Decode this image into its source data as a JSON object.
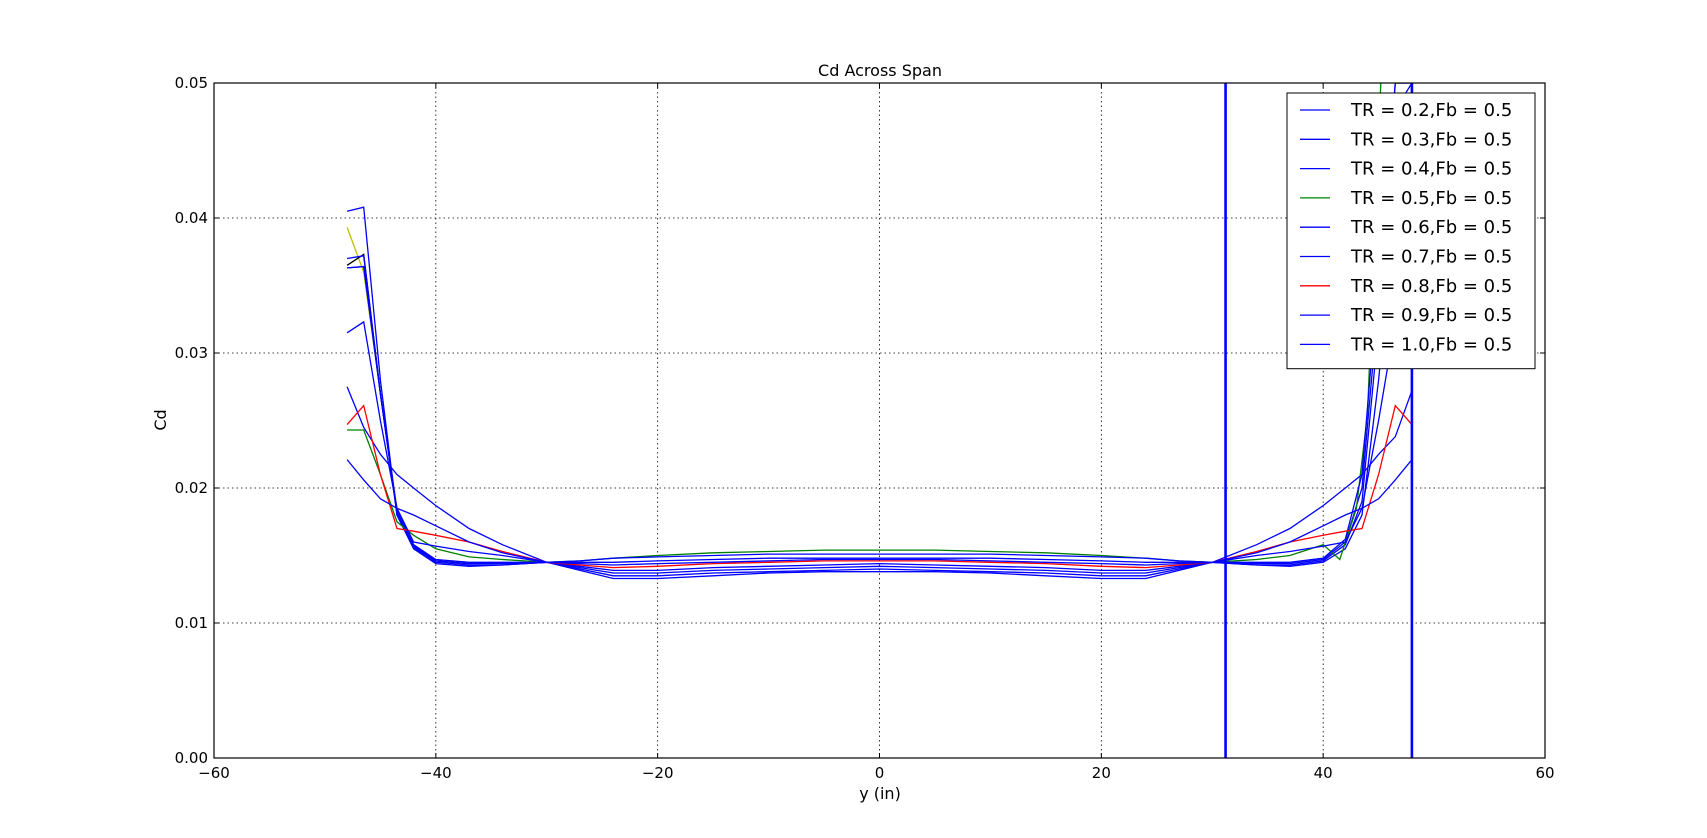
{
  "chart_data": {
    "type": "line",
    "title": "Cd Across Span",
    "xlabel": "y (in)",
    "ylabel": "Cd",
    "xlim": [
      -60,
      60
    ],
    "ylim": [
      0,
      0.05
    ],
    "xticks": [
      -60,
      -40,
      -20,
      0,
      20,
      40,
      60
    ],
    "xtick_labels": [
      "−60",
      "−40",
      "−20",
      "0",
      "20",
      "40",
      "60"
    ],
    "yticks": [
      0.0,
      0.01,
      0.02,
      0.03,
      0.04,
      0.05
    ],
    "ytick_labels": [
      "0.00",
      "0.01",
      "0.02",
      "0.03",
      "0.04",
      "0.05"
    ],
    "grid": true,
    "legend_position": "top-right",
    "vertical_lines": [
      {
        "x": 31.2,
        "color": "#0000ff"
      },
      {
        "x": 48.0,
        "color": "#0000ff"
      }
    ],
    "series": [
      {
        "name": "TR = 0.2,Fb = 0.5",
        "color": "#0000ff",
        "x": [
          -48,
          -46.5,
          -45,
          -43.5,
          -42,
          -40,
          -37,
          -34,
          -30,
          -27,
          -24,
          -20,
          -15,
          -10,
          -5,
          0,
          5,
          10,
          15,
          20,
          24,
          27,
          30,
          34,
          37,
          40,
          42,
          43.5,
          45,
          46.5,
          48
        ],
        "y": [
          0.0405,
          0.0408,
          0.028,
          0.018,
          0.0155,
          0.0144,
          0.0142,
          0.0143,
          0.0145,
          0.0139,
          0.0133,
          0.0133,
          0.0135,
          0.0137,
          0.0138,
          0.0138,
          0.0138,
          0.0137,
          0.0135,
          0.0133,
          0.0133,
          0.0139,
          0.0145,
          0.0143,
          0.0142,
          0.0145,
          0.0155,
          0.018,
          0.028,
          0.0408,
          0.0405
        ]
      },
      {
        "name": "TR = 0.3,Fb = 0.5",
        "color": "#0000ff",
        "x": [
          -48,
          -46.5,
          -45,
          -43.5,
          -42,
          -40,
          -37,
          -34,
          -30,
          -27,
          -24,
          -20,
          -15,
          -10,
          -5,
          0,
          5,
          10,
          15,
          20,
          24,
          27,
          30,
          34,
          37,
          40,
          42,
          43.5,
          45,
          46.5,
          48
        ],
        "y": [
          0.037,
          0.0372,
          0.027,
          0.018,
          0.0156,
          0.0145,
          0.0143,
          0.0143,
          0.0145,
          0.014,
          0.0135,
          0.0135,
          0.0137,
          0.0138,
          0.0139,
          0.014,
          0.0139,
          0.0138,
          0.0137,
          0.0135,
          0.0135,
          0.014,
          0.0145,
          0.0143,
          0.0143,
          0.0146,
          0.0158,
          0.019,
          0.032,
          0.048,
          0.05
        ]
      },
      {
        "name": "TR = 0.4,Fb = 0.5",
        "color": "#0000ff",
        "x": [
          -48,
          -46.5,
          -45,
          -43.5,
          -42,
          -40,
          -37,
          -34,
          -30,
          -27,
          -24,
          -20,
          -15,
          -10,
          -5,
          0,
          5,
          10,
          15,
          20,
          24,
          27,
          30,
          34,
          37,
          40,
          42,
          43.5,
          45,
          46.5,
          48
        ],
        "y": [
          0.0363,
          0.0364,
          0.027,
          0.0182,
          0.0157,
          0.0146,
          0.0144,
          0.0144,
          0.0145,
          0.0141,
          0.0137,
          0.0137,
          0.0139,
          0.014,
          0.0141,
          0.0142,
          0.0141,
          0.014,
          0.0139,
          0.0137,
          0.0137,
          0.0141,
          0.0145,
          0.0144,
          0.0144,
          0.0147,
          0.016,
          0.02,
          0.034,
          0.05,
          0.05
        ]
      },
      {
        "name": "TR = 0.5,Fb = 0.5",
        "color": "#008000",
        "x": [
          -48,
          -46.5,
          -45,
          -43.5,
          -42,
          -40,
          -37,
          -34,
          -30,
          -27,
          -24,
          -20,
          -15,
          -10,
          -5,
          0,
          5,
          10,
          15,
          20,
          24,
          27,
          30,
          34,
          37,
          40,
          41.5,
          43,
          44,
          45.2,
          46
        ],
        "y": [
          0.0243,
          0.0243,
          0.021,
          0.0175,
          0.0165,
          0.0155,
          0.0149,
          0.0147,
          0.0145,
          0.0146,
          0.0148,
          0.015,
          0.0152,
          0.0153,
          0.0154,
          0.0154,
          0.0154,
          0.0153,
          0.0152,
          0.015,
          0.0148,
          0.0146,
          0.0145,
          0.0147,
          0.015,
          0.0158,
          0.0147,
          0.0185,
          0.0255,
          0.05,
          0.0505
        ]
      },
      {
        "name": "TR = 0.6,Fb = 0.5",
        "color": "#0000ff",
        "x": [
          -48,
          -46.5,
          -45,
          -43.5,
          -42,
          -40,
          -37,
          -34,
          -30,
          -27,
          -24,
          -20,
          -15,
          -10,
          -5,
          0,
          5,
          10,
          15,
          20,
          24,
          27,
          30,
          34,
          37,
          40,
          42,
          43.5,
          45,
          46.5,
          48
        ],
        "y": [
          0.0275,
          0.0245,
          0.0225,
          0.021,
          0.02,
          0.0187,
          0.017,
          0.0158,
          0.0145,
          0.0146,
          0.0148,
          0.0149,
          0.015,
          0.0151,
          0.0151,
          0.0151,
          0.0151,
          0.0151,
          0.015,
          0.0149,
          0.0148,
          0.0146,
          0.0145,
          0.0158,
          0.017,
          0.0187,
          0.02,
          0.021,
          0.0225,
          0.0238,
          0.0272
        ]
      },
      {
        "name": "TR = 0.7,Fb = 0.5",
        "color": "#0000ff",
        "x": [
          -48,
          -46.5,
          -45,
          -43.5,
          -42,
          -40,
          -37,
          -34,
          -30,
          -27,
          -24,
          -20,
          -15,
          -10,
          -5,
          0,
          5,
          10,
          15,
          20,
          24,
          27,
          30,
          34,
          37,
          40,
          42,
          43.5,
          45,
          46.5,
          48
        ],
        "y": [
          0.0363,
          0.0364,
          0.027,
          0.0183,
          0.0158,
          0.0147,
          0.0145,
          0.0145,
          0.0145,
          0.0142,
          0.0139,
          0.0139,
          0.0141,
          0.0142,
          0.0143,
          0.0144,
          0.0143,
          0.0142,
          0.0141,
          0.0139,
          0.0139,
          0.0142,
          0.0145,
          0.0145,
          0.0145,
          0.0148,
          0.0162,
          0.021,
          0.036,
          0.05,
          0.05
        ]
      },
      {
        "name": "TR = 0.8,Fb = 0.5",
        "color": "#ff0000",
        "x": [
          -48,
          -46.5,
          -45,
          -43.5,
          -42,
          -40,
          -37,
          -34,
          -30,
          -27,
          -24,
          -20,
          -15,
          -10,
          -5,
          0,
          5,
          10,
          15,
          20,
          24,
          27,
          30,
          34,
          37,
          40,
          42,
          43.5,
          45,
          46.5,
          48
        ],
        "y": [
          0.0247,
          0.0261,
          0.021,
          0.017,
          0.0168,
          0.0165,
          0.016,
          0.0153,
          0.0145,
          0.0143,
          0.0141,
          0.0142,
          0.0144,
          0.0145,
          0.0146,
          0.0146,
          0.0146,
          0.0145,
          0.0144,
          0.0142,
          0.0141,
          0.0143,
          0.0145,
          0.0153,
          0.016,
          0.0165,
          0.0168,
          0.017,
          0.021,
          0.0261,
          0.0247
        ]
      },
      {
        "name": "TR = 0.9,Fb = 0.5",
        "color": "#0000ff",
        "x": [
          -48,
          -46.5,
          -45,
          -43.5,
          -42,
          -40,
          -37,
          -34,
          -30,
          -27,
          -24,
          -20,
          -15,
          -10,
          -5,
          0,
          5,
          10,
          15,
          20,
          24,
          27,
          30,
          34,
          37,
          40,
          42,
          43.5,
          45,
          46.5,
          48
        ],
        "y": [
          0.0221,
          0.0206,
          0.0192,
          0.0185,
          0.018,
          0.0172,
          0.016,
          0.0152,
          0.0145,
          0.0145,
          0.0145,
          0.0146,
          0.0147,
          0.0148,
          0.0148,
          0.0148,
          0.0148,
          0.0148,
          0.0147,
          0.0146,
          0.0145,
          0.0145,
          0.0145,
          0.0152,
          0.016,
          0.0172,
          0.018,
          0.0185,
          0.0192,
          0.0206,
          0.0221
        ]
      },
      {
        "name": "TR = 1.0,Fb = 0.5",
        "color": "#0000ff",
        "x": [
          -48,
          -46.5,
          -45,
          -43.5,
          -42,
          -40,
          -37,
          -34,
          -30,
          -27,
          -24,
          -20,
          -15,
          -10,
          -5,
          0,
          5,
          10,
          15,
          20,
          24,
          27,
          30,
          34,
          37,
          40,
          42,
          43.5,
          45,
          46.5,
          48
        ],
        "y": [
          0.0315,
          0.0323,
          0.025,
          0.0185,
          0.016,
          0.0157,
          0.0153,
          0.015,
          0.0145,
          0.0144,
          0.0143,
          0.0144,
          0.0145,
          0.0146,
          0.0147,
          0.0147,
          0.0147,
          0.0146,
          0.0145,
          0.0144,
          0.0143,
          0.0144,
          0.0145,
          0.015,
          0.0153,
          0.0157,
          0.016,
          0.0185,
          0.025,
          0.0323,
          0.0315
        ]
      }
    ],
    "unlabeled_lines": [
      {
        "color": "#bfbf00",
        "x": [
          -48,
          -46.5,
          -45,
          -43.5,
          -42,
          -40,
          -37
        ],
        "y": [
          0.0393,
          0.036,
          0.027,
          0.0185,
          0.0157,
          0.0146,
          0.0144
        ]
      },
      {
        "color": "#000000",
        "x": [
          -48,
          -46.5,
          -45,
          -43.5,
          -42,
          -40,
          -37
        ],
        "y": [
          0.0365,
          0.0373,
          0.027,
          0.0182,
          0.0157,
          0.0146,
          0.0144
        ]
      }
    ]
  }
}
